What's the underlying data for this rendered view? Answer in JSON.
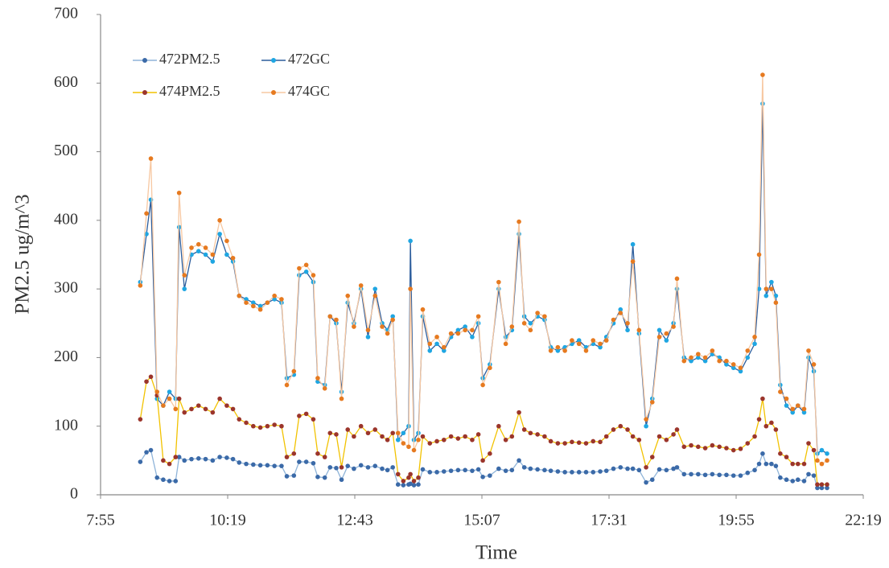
{
  "chart_data": {
    "type": "line",
    "x_label": "Time",
    "y_label": "PM2.5 ug/m^3",
    "xlim": [
      475,
      1339
    ],
    "xticks": [
      {
        "value": 475,
        "label": "7:55"
      },
      {
        "value": 619,
        "label": "10:19"
      },
      {
        "value": 763,
        "label": "12:43"
      },
      {
        "value": 907,
        "label": "15:07"
      },
      {
        "value": 1051,
        "label": "17:31"
      },
      {
        "value": 1195,
        "label": "19:55"
      },
      {
        "value": 1339,
        "label": "22:19"
      }
    ],
    "ylim": [
      0,
      700
    ],
    "yticks": [
      0,
      100,
      200,
      300,
      400,
      500,
      600,
      700
    ],
    "grid": false,
    "legend": "upper left",
    "x": [
      520,
      527,
      532,
      539,
      546,
      553,
      560,
      564,
      570,
      578,
      586,
      594,
      602,
      610,
      618,
      625,
      632,
      640,
      648,
      656,
      664,
      672,
      680,
      686,
      694,
      700,
      708,
      716,
      721,
      729,
      735,
      742,
      748,
      755,
      762,
      770,
      778,
      786,
      794,
      800,
      806,
      812,
      818,
      824,
      826,
      830,
      835,
      840,
      848,
      856,
      864,
      872,
      880,
      888,
      896,
      903,
      908,
      916,
      926,
      934,
      941,
      949,
      955,
      962,
      970,
      978,
      985,
      993,
      1001,
      1009,
      1017,
      1025,
      1033,
      1041,
      1048,
      1056,
      1064,
      1072,
      1078,
      1085,
      1093,
      1100,
      1108,
      1116,
      1124,
      1128,
      1136,
      1144,
      1152,
      1160,
      1168,
      1176,
      1184,
      1192,
      1200,
      1208,
      1216,
      1221,
      1225,
      1229,
      1235,
      1240,
      1245,
      1252,
      1259,
      1265,
      1272,
      1277,
      1283,
      1287,
      1292,
      1298
    ],
    "series": [
      {
        "name": "472PM2.5",
        "color": "#3b6aa8",
        "line_color": "#8fb4d9",
        "values": [
          48,
          62,
          65,
          25,
          22,
          20,
          20,
          55,
          50,
          52,
          53,
          52,
          50,
          55,
          54,
          52,
          47,
          45,
          44,
          43,
          43,
          42,
          42,
          27,
          28,
          48,
          48,
          46,
          26,
          25,
          40,
          39,
          22,
          42,
          38,
          43,
          40,
          42,
          38,
          36,
          40,
          15,
          14,
          15,
          16,
          14,
          15,
          37,
          33,
          33,
          34,
          35,
          36,
          36,
          35,
          37,
          26,
          28,
          38,
          35,
          36,
          50,
          40,
          38,
          37,
          36,
          35,
          34,
          33,
          33,
          33,
          33,
          33,
          34,
          35,
          38,
          40,
          38,
          38,
          36,
          18,
          22,
          37,
          36,
          38,
          40,
          30,
          30,
          30,
          29,
          30,
          29,
          29,
          28,
          28,
          32,
          36,
          45,
          60,
          45,
          45,
          42,
          25,
          22,
          20,
          22,
          20,
          30,
          28,
          10,
          10,
          10
        ]
      },
      {
        "name": "472GC",
        "color": "#1fa6e2",
        "line_color": "#2c5d9c",
        "values": [
          310,
          380,
          430,
          140,
          130,
          150,
          140,
          390,
          300,
          350,
          355,
          350,
          340,
          380,
          350,
          340,
          290,
          285,
          280,
          275,
          280,
          285,
          280,
          170,
          175,
          320,
          325,
          310,
          165,
          160,
          260,
          250,
          150,
          280,
          250,
          300,
          230,
          300,
          250,
          240,
          260,
          80,
          90,
          100,
          370,
          80,
          90,
          260,
          210,
          220,
          210,
          230,
          240,
          245,
          230,
          250,
          170,
          190,
          300,
          230,
          240,
          380,
          260,
          250,
          260,
          255,
          215,
          210,
          215,
          220,
          225,
          215,
          220,
          215,
          230,
          250,
          270,
          240,
          365,
          235,
          100,
          140,
          240,
          225,
          250,
          300,
          200,
          195,
          200,
          195,
          205,
          200,
          190,
          185,
          180,
          200,
          220,
          300,
          570,
          290,
          310,
          290,
          160,
          130,
          120,
          130,
          120,
          200,
          180,
          60,
          65,
          60
        ]
      },
      {
        "name": "474PM2.5",
        "color": "#9b352b",
        "line_color": "#f2c200",
        "values": [
          110,
          165,
          172,
          145,
          50,
          45,
          55,
          140,
          120,
          125,
          130,
          125,
          120,
          140,
          130,
          125,
          110,
          105,
          100,
          98,
          100,
          102,
          100,
          55,
          60,
          115,
          118,
          110,
          60,
          55,
          90,
          88,
          40,
          95,
          85,
          100,
          90,
          95,
          85,
          80,
          90,
          30,
          20,
          25,
          30,
          20,
          25,
          85,
          75,
          78,
          80,
          85,
          82,
          85,
          80,
          88,
          50,
          60,
          100,
          80,
          85,
          120,
          95,
          90,
          88,
          85,
          78,
          75,
          75,
          77,
          76,
          75,
          78,
          77,
          85,
          95,
          100,
          95,
          85,
          80,
          40,
          55,
          85,
          80,
          88,
          95,
          70,
          72,
          70,
          68,
          72,
          70,
          68,
          65,
          67,
          75,
          85,
          110,
          140,
          100,
          105,
          95,
          60,
          55,
          45,
          45,
          45,
          75,
          65,
          15,
          15,
          15
        ]
      },
      {
        "name": "474GC",
        "color": "#e67a20",
        "line_color": "#f7c8a2",
        "values": [
          305,
          410,
          490,
          150,
          130,
          140,
          125,
          440,
          320,
          360,
          365,
          360,
          350,
          400,
          370,
          345,
          290,
          280,
          275,
          270,
          280,
          290,
          285,
          160,
          180,
          330,
          335,
          320,
          170,
          155,
          260,
          255,
          140,
          290,
          245,
          305,
          240,
          290,
          245,
          235,
          255,
          90,
          75,
          70,
          300,
          65,
          80,
          270,
          220,
          230,
          215,
          235,
          235,
          240,
          240,
          260,
          160,
          185,
          310,
          220,
          245,
          398,
          250,
          240,
          265,
          260,
          210,
          215,
          210,
          225,
          220,
          210,
          225,
          220,
          225,
          255,
          265,
          250,
          340,
          240,
          110,
          135,
          230,
          235,
          245,
          315,
          195,
          200,
          205,
          200,
          210,
          195,
          195,
          190,
          185,
          210,
          230,
          350,
          612,
          300,
          300,
          280,
          150,
          140,
          125,
          130,
          125,
          210,
          190,
          50,
          45,
          50
        ]
      }
    ]
  }
}
